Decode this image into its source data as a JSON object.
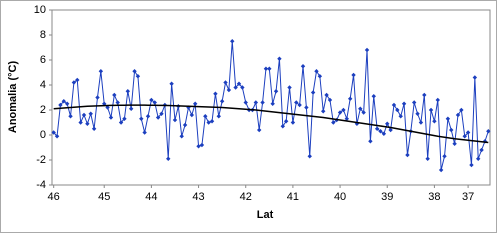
{
  "chart_data": {
    "type": "line",
    "ylabel": "Anomalia (°C)",
    "xlabel": "Lat",
    "categories": [
      "46",
      null,
      null,
      null,
      null,
      null,
      null,
      null,
      null,
      null,
      null,
      null,
      null,
      null,
      null,
      "45",
      null,
      null,
      null,
      null,
      null,
      null,
      null,
      null,
      null,
      null,
      null,
      null,
      null,
      "44",
      null,
      null,
      null,
      null,
      null,
      null,
      null,
      null,
      null,
      null,
      null,
      null,
      null,
      "43",
      null,
      null,
      null,
      null,
      null,
      null,
      null,
      null,
      null,
      null,
      null,
      null,
      null,
      "42",
      null,
      null,
      null,
      null,
      null,
      null,
      null,
      null,
      null,
      null,
      null,
      null,
      null,
      "41",
      null,
      null,
      null,
      null,
      null,
      null,
      null,
      null,
      null,
      null,
      null,
      null,
      null,
      "40",
      null,
      null,
      null,
      null,
      null,
      null,
      null,
      null,
      null,
      null,
      null,
      null,
      null,
      "39",
      null,
      null,
      null,
      null,
      null,
      null,
      null,
      null,
      null,
      null,
      null,
      null,
      null,
      "38",
      null,
      null,
      null,
      null,
      null,
      null,
      null,
      null,
      null,
      "37",
      null,
      null,
      null,
      null,
      null,
      null
    ],
    "series": [
      {
        "color": "#1c3fbf",
        "markers": true,
        "values": [
          0.2,
          -0.1,
          2.4,
          2.7,
          2.5,
          1.5,
          4.2,
          4.4,
          1.0,
          1.6,
          0.9,
          1.7,
          0.5,
          3.0,
          5.1,
          2.5,
          2.2,
          1.4,
          3.2,
          2.6,
          1.0,
          1.3,
          3.5,
          2.1,
          5.1,
          4.7,
          1.3,
          0.2,
          1.5,
          2.8,
          2.6,
          1.4,
          1.7,
          2.4,
          -1.9,
          4.1,
          1.2,
          2.3,
          -0.1,
          0.8,
          2.2,
          1.6,
          2.5,
          -0.9,
          -0.8,
          1.5,
          1.0,
          1.1,
          3.3,
          1.5,
          2.7,
          4.2,
          3.6,
          7.5,
          3.8,
          4.1,
          3.8,
          2.6,
          2.0,
          2.0,
          2.6,
          0.4,
          2.6,
          5.3,
          5.3,
          2.5,
          3.5,
          6.1,
          0.7,
          1.1,
          3.8,
          1.0,
          2.6,
          2.4,
          5.5,
          2.2,
          -1.7,
          3.4,
          5.1,
          4.7,
          1.9,
          3.2,
          2.8,
          1.0,
          1.2,
          1.8,
          2.0,
          1.3,
          2.9,
          4.8,
          0.9,
          2.1,
          1.8,
          6.8,
          -0.5,
          3.1,
          0.5,
          0.3,
          0.1,
          0.9,
          0.4,
          2.4,
          2.0,
          1.5,
          2.5,
          -1.6,
          0.3,
          2.6,
          1.7,
          1.0,
          3.2,
          -1.9,
          2.0,
          1.1,
          2.8,
          -2.8,
          -1.7,
          1.3,
          0.4,
          -0.7,
          1.6,
          2.0,
          -0.1,
          0.2,
          -2.4,
          4.6,
          -1.9,
          -1.2,
          -0.5,
          0.3
        ]
      },
      {
        "color": "#000000",
        "markers": false,
        "values": [
          2.1,
          2.12,
          2.14,
          2.16,
          2.18,
          2.2,
          2.22,
          2.24,
          2.26,
          2.28,
          2.3,
          2.31,
          2.32,
          2.33,
          2.34,
          2.35,
          2.36,
          2.37,
          2.37,
          2.38,
          2.38,
          2.38,
          2.39,
          2.39,
          2.39,
          2.39,
          2.39,
          2.39,
          2.38,
          2.38,
          2.38,
          2.37,
          2.37,
          2.36,
          2.36,
          2.35,
          2.34,
          2.33,
          2.32,
          2.31,
          2.3,
          2.29,
          2.28,
          2.27,
          2.26,
          2.25,
          2.24,
          2.23,
          2.22,
          2.21,
          2.2,
          2.18,
          2.16,
          2.14,
          2.12,
          2.1,
          2.08,
          2.06,
          2.04,
          2.02,
          2.0,
          1.97,
          1.94,
          1.91,
          1.88,
          1.85,
          1.82,
          1.79,
          1.76,
          1.73,
          1.7,
          1.67,
          1.64,
          1.61,
          1.58,
          1.55,
          1.52,
          1.49,
          1.46,
          1.43,
          1.4,
          1.36,
          1.32,
          1.28,
          1.24,
          1.2,
          1.16,
          1.12,
          1.08,
          1.04,
          1.0,
          0.96,
          0.92,
          0.88,
          0.84,
          0.8,
          0.76,
          0.72,
          0.68,
          0.64,
          0.6,
          0.55,
          0.5,
          0.45,
          0.4,
          0.35,
          0.3,
          0.25,
          0.2,
          0.15,
          0.1,
          0.05,
          0.0,
          -0.05,
          -0.1,
          -0.14,
          -0.18,
          -0.22,
          -0.26,
          -0.3,
          -0.33,
          -0.36,
          -0.39,
          -0.42,
          -0.45,
          -0.48,
          -0.51,
          -0.54,
          -0.57,
          -0.6
        ]
      }
    ],
    "ylim": [
      -4,
      10
    ],
    "yticks": [
      -4,
      -2,
      0,
      2,
      4,
      6,
      8,
      10
    ],
    "grid": false
  }
}
